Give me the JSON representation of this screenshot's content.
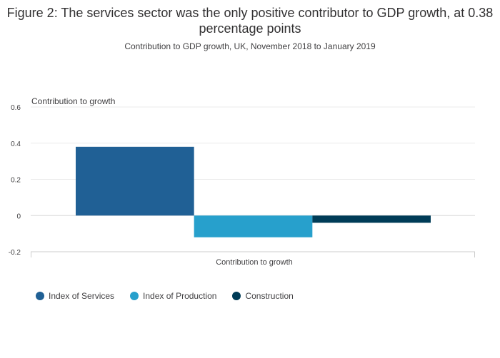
{
  "chart_data": {
    "type": "bar",
    "title": "Figure 2: The services sector was the only positive contributor to GDP growth, at 0.38 percentage points",
    "subtitle": "Contribution to GDP growth, UK, November 2018 to January 2019",
    "ylabel": "Contribution to growth",
    "xlabel": "Contribution to growth",
    "categories": [
      "Contribution to growth"
    ],
    "ylim": [
      -0.2,
      0.6
    ],
    "yticks": [
      0.6,
      0.4,
      0.2,
      0,
      -0.2
    ],
    "ytick_labels": [
      "0.6",
      "0.4",
      "0.2",
      "0",
      "-0.2"
    ],
    "grid": true,
    "legend_position": "bottom-left",
    "series": [
      {
        "name": "Index of Services",
        "values": [
          0.38
        ],
        "color": "#206095"
      },
      {
        "name": "Index of Production",
        "values": [
          -0.12
        ],
        "color": "#27A0CC"
      },
      {
        "name": "Construction",
        "values": [
          -0.04
        ],
        "color": "#003C57"
      }
    ]
  }
}
